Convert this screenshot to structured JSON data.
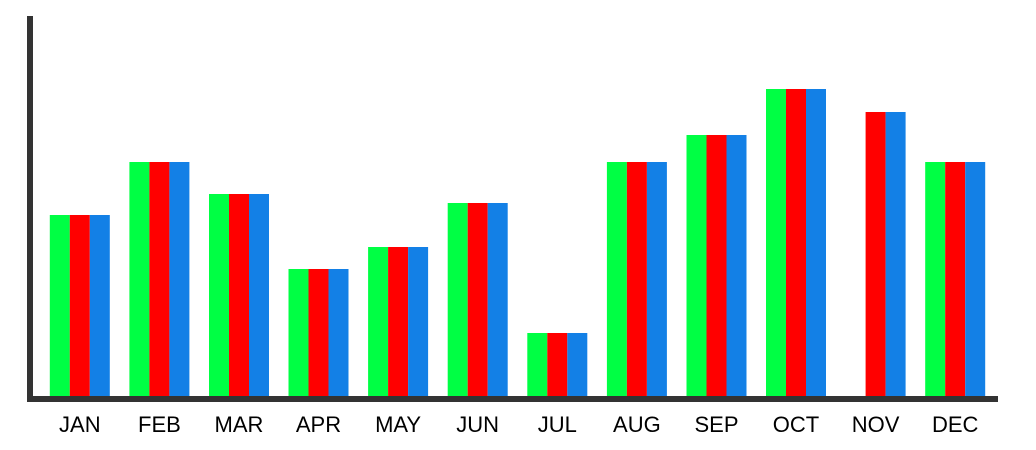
{
  "chart_data": {
    "type": "bar",
    "title": "",
    "xlabel": "",
    "ylabel": "",
    "categories": [
      "JAN",
      "FEB",
      "MAR",
      "APR",
      "MAY",
      "JUN",
      "JUL",
      "AUG",
      "SEP",
      "OCT",
      "NOV",
      "DEC"
    ],
    "series": [
      {
        "color": "#00ff44",
        "values": [
          182,
          235,
          203,
          128,
          150,
          194,
          64,
          235,
          262,
          308,
          null,
          235
        ]
      },
      {
        "color": "#ff0000",
        "values": [
          182,
          235,
          203,
          128,
          150,
          194,
          64,
          235,
          262,
          308,
          285,
          235
        ]
      },
      {
        "color": "#1380e6",
        "values": [
          182,
          235,
          203,
          128,
          150,
          194,
          64,
          235,
          262,
          308,
          285,
          235
        ]
      }
    ],
    "ylim": [
      0,
      380
    ],
    "grid": false,
    "legend": "none",
    "axis_color": "#333333"
  }
}
